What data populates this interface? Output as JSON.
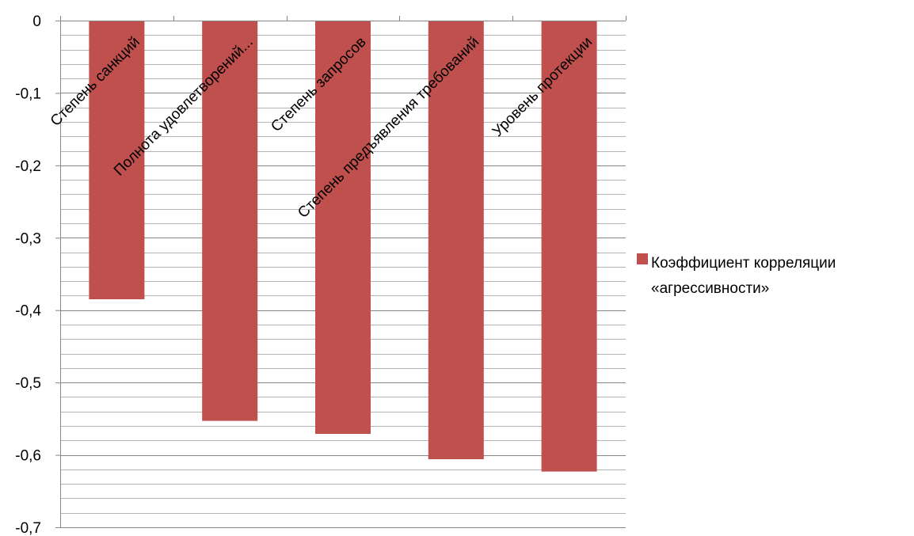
{
  "chart_data": {
    "type": "bar",
    "title": "",
    "xlabel": "",
    "ylabel": "",
    "categories": [
      "Степень санкций",
      "Полнота удовлетворений...",
      "Степень запросов",
      "Степень предъявления требований",
      "Уровень протекции"
    ],
    "series": [
      {
        "name": "Коэффициент корреляции «агрессивности»",
        "values": [
          -0.385,
          -0.553,
          -0.571,
          -0.606,
          -0.623
        ],
        "color": "#C0504D"
      }
    ],
    "ylim": [
      -0.7,
      0
    ],
    "yticks": [
      0,
      -0.1,
      -0.2,
      -0.3,
      -0.4,
      -0.5,
      -0.6,
      -0.7
    ],
    "ytick_labels": [
      "0",
      "-0,1",
      "-0,2",
      "-0,3",
      "-0,4",
      "-0,5",
      "-0,6",
      "-0,7"
    ],
    "grid": true,
    "minor_grid": true,
    "legend_position": "right",
    "legend_lines": [
      "Коэффициент корреляции",
      "«агрессивности»"
    ]
  }
}
